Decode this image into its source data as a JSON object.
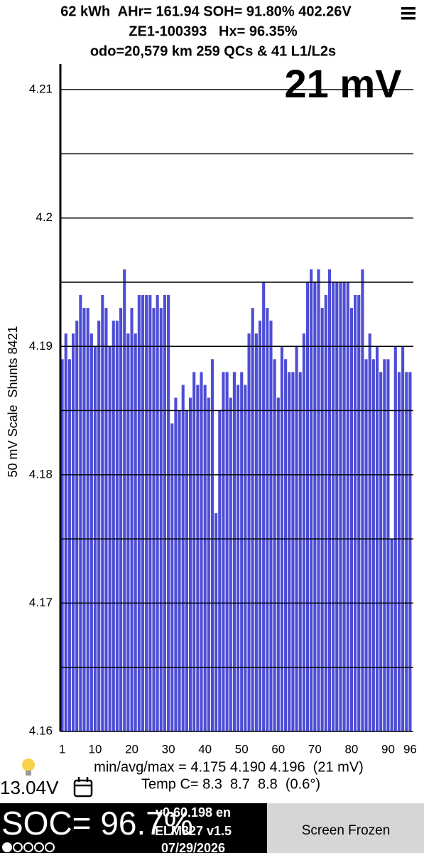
{
  "header": {
    "line1": "62 kWh  AHr= 161.94 SOH= 91.80% 402.26V",
    "line2": "ZE1-100393   Hx= 96.35%",
    "line3": "odo=20,579 km 259 QCs & 41 L1/L2s"
  },
  "chart_data": {
    "type": "bar",
    "annotation": "21 mV",
    "y_label": "50 mV Scale  Shunts 8421",
    "categories": [
      "1",
      null,
      null,
      null,
      null,
      null,
      null,
      null,
      null,
      "10",
      null,
      null,
      null,
      null,
      null,
      null,
      null,
      null,
      null,
      "20",
      null,
      null,
      null,
      null,
      null,
      null,
      null,
      null,
      null,
      "30",
      null,
      null,
      null,
      null,
      null,
      null,
      null,
      null,
      null,
      "40",
      null,
      null,
      null,
      null,
      null,
      null,
      null,
      null,
      null,
      "50",
      null,
      null,
      null,
      null,
      null,
      null,
      null,
      null,
      null,
      "60",
      null,
      null,
      null,
      null,
      null,
      null,
      null,
      null,
      null,
      "70",
      null,
      null,
      null,
      null,
      null,
      null,
      null,
      null,
      null,
      "80",
      null,
      null,
      null,
      null,
      null,
      null,
      null,
      null,
      null,
      "90",
      null,
      null,
      null,
      null,
      null,
      "96"
    ],
    "values": [
      4.189,
      4.191,
      4.189,
      4.191,
      4.192,
      4.194,
      4.193,
      4.193,
      4.191,
      4.19,
      4.192,
      4.194,
      4.193,
      4.19,
      4.192,
      4.192,
      4.193,
      4.196,
      4.191,
      4.193,
      4.191,
      4.194,
      4.194,
      4.194,
      4.194,
      4.193,
      4.194,
      4.193,
      4.194,
      4.194,
      4.184,
      4.186,
      4.185,
      4.187,
      4.185,
      4.186,
      4.188,
      4.187,
      4.188,
      4.187,
      4.186,
      4.189,
      4.177,
      4.185,
      4.188,
      4.188,
      4.186,
      4.188,
      4.187,
      4.188,
      4.187,
      4.191,
      4.193,
      4.191,
      4.192,
      4.195,
      4.193,
      4.192,
      4.189,
      4.186,
      4.19,
      4.189,
      4.188,
      4.188,
      4.19,
      4.188,
      4.191,
      4.195,
      4.196,
      4.195,
      4.196,
      4.193,
      4.194,
      4.196,
      4.195,
      4.195,
      4.195,
      4.195,
      4.195,
      4.193,
      4.194,
      4.194,
      4.196,
      4.189,
      4.191,
      4.189,
      4.19,
      4.188,
      4.189,
      4.189,
      4.175,
      4.19,
      4.188,
      4.19,
      4.188,
      4.188
    ],
    "color": "#4d4dd6",
    "ylim": [
      4.16,
      4.212
    ],
    "yticks": [
      4.16,
      4.17,
      4.18,
      4.19,
      4.2,
      4.21
    ],
    "minor_yticks": [
      4.165,
      4.175,
      4.185,
      4.195,
      4.205
    ],
    "grid": true
  },
  "footer": {
    "stats": "min/avg/max = 4.175 4.190 4.196  (21 mV)",
    "temp": "Temp C= 8.3  8.7  8.8  (0.6°)",
    "voltage": "13.04V",
    "soc": "SOC= 96.7%",
    "version": "v0.60.198 en",
    "adapter": "ELM327 v1.5",
    "date": "07/29/2026",
    "button": "Screen Frozen"
  }
}
